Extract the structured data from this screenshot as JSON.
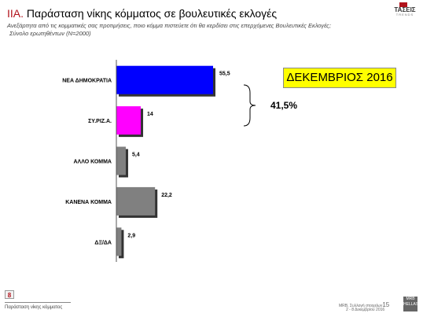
{
  "header": {
    "code": "ΙΙΑ.",
    "title": "Παράσταση νίκης κόμματος σε βουλευτικές εκλογές",
    "subtitle": "Ανεξάρτητα από τις κομματικές σας προτιμήσεις, ποιο κόμμα πιστεύετε ότι θα κερδίσει στις επερχόμενες Βουλευτικές Εκλογές;",
    "sample": "Σύνολο ερωτηθέντων (Ν=2000)"
  },
  "logo": {
    "name": "ΤΑΣΕΙΣ",
    "sub": "TRENDS"
  },
  "badge": {
    "text": "ΔΕΚΕΜΒΡΙΟΣ 2016",
    "color": "#ffff00"
  },
  "annotation": {
    "total_label": "41,5%"
  },
  "chart_data": {
    "type": "bar",
    "orientation": "horizontal",
    "categories": [
      "ΝΕΑ ΔΗΜΟΚΡΑΤΙΑ",
      "ΣΥ.ΡΙΖ.Α.",
      "ΑΛΛΟ ΚΟΜΜΑ",
      "ΚΑΝΕΝΑ ΚΟΜΜΑ",
      "ΔΞ/ΔΑ"
    ],
    "values": [
      55.5,
      14,
      5.4,
      22.2,
      2.9
    ],
    "value_labels": [
      "55,5",
      "14",
      "5,4",
      "22,2",
      "2,9"
    ],
    "colors": [
      "#0000ff",
      "#ff00ff",
      "#808080",
      "#808080",
      "#808080"
    ],
    "xlim": [
      0,
      60
    ],
    "grid": false,
    "legend": "none"
  },
  "footer": {
    "page_number": "8",
    "left_text": "Παράσταση νίκης κόμματος",
    "right_line1": "MRB, Συλλογή στοιχείων",
    "right_page": "15",
    "right_line2": "2 - 8 Δεκεμβρίου 2016",
    "mrb_logo": "MRB HELLAS"
  }
}
